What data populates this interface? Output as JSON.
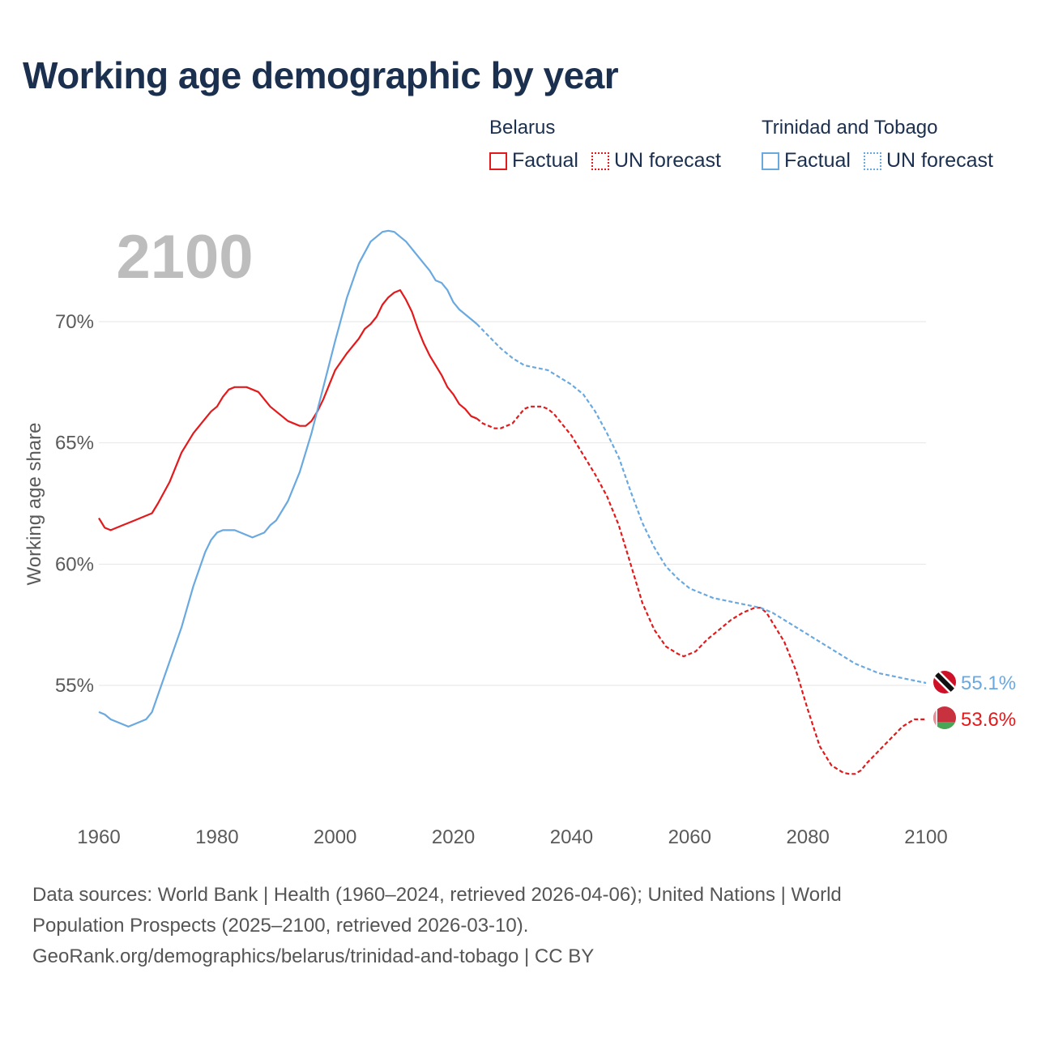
{
  "header": {
    "title": "Working age demographic by year"
  },
  "legend": {
    "groups": [
      {
        "country": "Belarus",
        "factual_label": "Factual",
        "forecast_label": "UN forecast",
        "color": "#e31a1c"
      },
      {
        "country": "Trinidad and Tobago",
        "factual_label": "Factual",
        "forecast_label": "UN forecast",
        "color": "#6aa9e0"
      }
    ]
  },
  "chart_data": {
    "type": "line",
    "title": "Working age demographic by year",
    "year_overlay": "2100",
    "xlabel": "",
    "ylabel": "Working age share",
    "xlim": [
      1960,
      2100
    ],
    "ylim": [
      50.5,
      75
    ],
    "x_ticks": [
      "1960",
      "1980",
      "2000",
      "2020",
      "2040",
      "2060",
      "2080",
      "2100"
    ],
    "y_ticks": [
      "55%",
      "60%",
      "65%",
      "70%"
    ],
    "grid": "horizontal",
    "factual_end_year": 2024,
    "series": [
      {
        "name": "Belarus",
        "color": "#e31a1c",
        "end_label": "53.6%",
        "end_flag": "belarus-flag-icon",
        "points": [
          [
            1960,
            61.9
          ],
          [
            1961,
            61.5
          ],
          [
            1962,
            61.4
          ],
          [
            1964,
            61.6
          ],
          [
            1966,
            61.8
          ],
          [
            1968,
            62.0
          ],
          [
            1969,
            62.1
          ],
          [
            1970,
            62.5
          ],
          [
            1972,
            63.4
          ],
          [
            1974,
            64.6
          ],
          [
            1976,
            65.4
          ],
          [
            1978,
            66.0
          ],
          [
            1979,
            66.3
          ],
          [
            1980,
            66.5
          ],
          [
            1981,
            66.9
          ],
          [
            1982,
            67.2
          ],
          [
            1983,
            67.3
          ],
          [
            1984,
            67.3
          ],
          [
            1985,
            67.3
          ],
          [
            1986,
            67.2
          ],
          [
            1987,
            67.1
          ],
          [
            1988,
            66.8
          ],
          [
            1989,
            66.5
          ],
          [
            1990,
            66.3
          ],
          [
            1992,
            65.9
          ],
          [
            1994,
            65.7
          ],
          [
            1995,
            65.7
          ],
          [
            1996,
            65.9
          ],
          [
            1997,
            66.3
          ],
          [
            1998,
            66.8
          ],
          [
            1999,
            67.4
          ],
          [
            2000,
            68.0
          ],
          [
            2002,
            68.7
          ],
          [
            2004,
            69.3
          ],
          [
            2005,
            69.7
          ],
          [
            2006,
            69.9
          ],
          [
            2007,
            70.2
          ],
          [
            2008,
            70.7
          ],
          [
            2009,
            71.0
          ],
          [
            2010,
            71.2
          ],
          [
            2011,
            71.3
          ],
          [
            2012,
            70.9
          ],
          [
            2013,
            70.4
          ],
          [
            2014,
            69.7
          ],
          [
            2015,
            69.1
          ],
          [
            2016,
            68.6
          ],
          [
            2017,
            68.2
          ],
          [
            2018,
            67.8
          ],
          [
            2019,
            67.3
          ],
          [
            2020,
            67.0
          ],
          [
            2021,
            66.6
          ],
          [
            2022,
            66.4
          ],
          [
            2023,
            66.1
          ],
          [
            2024,
            66.0
          ],
          [
            2025,
            65.8
          ],
          [
            2026,
            65.7
          ],
          [
            2027,
            65.6
          ],
          [
            2028,
            65.6
          ],
          [
            2029,
            65.7
          ],
          [
            2030,
            65.8
          ],
          [
            2031,
            66.1
          ],
          [
            2032,
            66.4
          ],
          [
            2033,
            66.5
          ],
          [
            2034,
            66.5
          ],
          [
            2035,
            66.5
          ],
          [
            2036,
            66.4
          ],
          [
            2037,
            66.2
          ],
          [
            2038,
            65.9
          ],
          [
            2040,
            65.3
          ],
          [
            2042,
            64.5
          ],
          [
            2044,
            63.7
          ],
          [
            2046,
            62.8
          ],
          [
            2048,
            61.6
          ],
          [
            2050,
            60.0
          ],
          [
            2052,
            58.4
          ],
          [
            2054,
            57.3
          ],
          [
            2056,
            56.6
          ],
          [
            2058,
            56.3
          ],
          [
            2059,
            56.2
          ],
          [
            2060,
            56.3
          ],
          [
            2061,
            56.4
          ],
          [
            2063,
            56.9
          ],
          [
            2065,
            57.3
          ],
          [
            2067,
            57.7
          ],
          [
            2069,
            58.0
          ],
          [
            2071,
            58.2
          ],
          [
            2072,
            58.2
          ],
          [
            2073,
            58.0
          ],
          [
            2074,
            57.6
          ],
          [
            2076,
            56.8
          ],
          [
            2078,
            55.6
          ],
          [
            2080,
            54.0
          ],
          [
            2082,
            52.5
          ],
          [
            2084,
            51.7
          ],
          [
            2086,
            51.4
          ],
          [
            2087,
            51.35
          ],
          [
            2088,
            51.35
          ],
          [
            2089,
            51.5
          ],
          [
            2090,
            51.8
          ],
          [
            2092,
            52.3
          ],
          [
            2094,
            52.8
          ],
          [
            2096,
            53.3
          ],
          [
            2098,
            53.6
          ],
          [
            2100,
            53.6
          ]
        ]
      },
      {
        "name": "Trinidad and Tobago",
        "color": "#6aa9e0",
        "end_label": "55.1%",
        "end_flag": "trinidad-and-tobago-flag-icon",
        "points": [
          [
            1960,
            53.9
          ],
          [
            1961,
            53.8
          ],
          [
            1962,
            53.6
          ],
          [
            1964,
            53.4
          ],
          [
            1965,
            53.3
          ],
          [
            1966,
            53.4
          ],
          [
            1968,
            53.6
          ],
          [
            1969,
            53.9
          ],
          [
            1970,
            54.6
          ],
          [
            1972,
            56.0
          ],
          [
            1974,
            57.4
          ],
          [
            1976,
            59.1
          ],
          [
            1978,
            60.5
          ],
          [
            1979,
            61.0
          ],
          [
            1980,
            61.3
          ],
          [
            1981,
            61.4
          ],
          [
            1982,
            61.4
          ],
          [
            1983,
            61.4
          ],
          [
            1984,
            61.3
          ],
          [
            1985,
            61.2
          ],
          [
            1986,
            61.1
          ],
          [
            1987,
            61.2
          ],
          [
            1988,
            61.3
          ],
          [
            1989,
            61.6
          ],
          [
            1990,
            61.8
          ],
          [
            1992,
            62.6
          ],
          [
            1994,
            63.8
          ],
          [
            1996,
            65.4
          ],
          [
            1998,
            67.3
          ],
          [
            2000,
            69.2
          ],
          [
            2002,
            71.0
          ],
          [
            2004,
            72.4
          ],
          [
            2006,
            73.3
          ],
          [
            2007,
            73.5
          ],
          [
            2008,
            73.7
          ],
          [
            2009,
            73.75
          ],
          [
            2010,
            73.7
          ],
          [
            2011,
            73.5
          ],
          [
            2012,
            73.3
          ],
          [
            2013,
            73.0
          ],
          [
            2014,
            72.7
          ],
          [
            2015,
            72.4
          ],
          [
            2016,
            72.1
          ],
          [
            2017,
            71.7
          ],
          [
            2018,
            71.6
          ],
          [
            2019,
            71.3
          ],
          [
            2020,
            70.8
          ],
          [
            2021,
            70.5
          ],
          [
            2022,
            70.3
          ],
          [
            2023,
            70.1
          ],
          [
            2024,
            69.9
          ],
          [
            2026,
            69.4
          ],
          [
            2028,
            68.9
          ],
          [
            2030,
            68.5
          ],
          [
            2032,
            68.2
          ],
          [
            2034,
            68.1
          ],
          [
            2036,
            68.0
          ],
          [
            2038,
            67.7
          ],
          [
            2040,
            67.4
          ],
          [
            2042,
            67.0
          ],
          [
            2044,
            66.3
          ],
          [
            2046,
            65.4
          ],
          [
            2048,
            64.4
          ],
          [
            2050,
            63.0
          ],
          [
            2052,
            61.7
          ],
          [
            2054,
            60.7
          ],
          [
            2056,
            59.9
          ],
          [
            2058,
            59.4
          ],
          [
            2060,
            59.0
          ],
          [
            2062,
            58.8
          ],
          [
            2064,
            58.6
          ],
          [
            2066,
            58.5
          ],
          [
            2068,
            58.4
          ],
          [
            2070,
            58.3
          ],
          [
            2072,
            58.2
          ],
          [
            2074,
            58.0
          ],
          [
            2076,
            57.7
          ],
          [
            2078,
            57.4
          ],
          [
            2080,
            57.1
          ],
          [
            2082,
            56.8
          ],
          [
            2084,
            56.5
          ],
          [
            2086,
            56.2
          ],
          [
            2088,
            55.9
          ],
          [
            2090,
            55.7
          ],
          [
            2092,
            55.5
          ],
          [
            2094,
            55.4
          ],
          [
            2096,
            55.3
          ],
          [
            2098,
            55.2
          ],
          [
            2100,
            55.1
          ]
        ]
      }
    ]
  },
  "footer": {
    "line1": "Data sources: World Bank | Health (1960–2024, retrieved 2026-04-06); United Nations | World",
    "line2": "Population Prospects (2025–2100, retrieved 2026-03-10).",
    "line3": "GeoRank.org/demographics/belarus/trinidad-and-tobago | CC BY"
  }
}
